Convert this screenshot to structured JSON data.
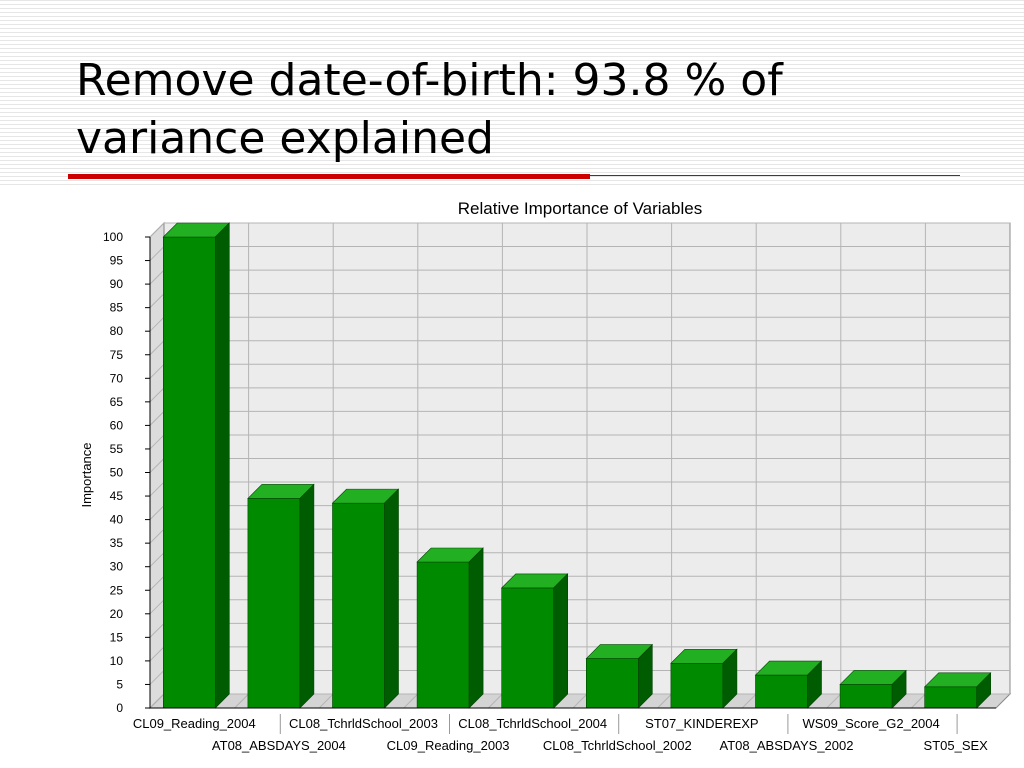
{
  "slide": {
    "title_line1": "Remove date-of-birth: 93.8 % of",
    "title_line2": "variance explained"
  },
  "chart_data": {
    "type": "bar",
    "title": "Relative Importance of Variables",
    "xlabel": "",
    "ylabel": "Importance",
    "ylim": [
      0,
      100
    ],
    "yticks": [
      0,
      5,
      10,
      15,
      20,
      25,
      30,
      35,
      40,
      45,
      50,
      55,
      60,
      65,
      70,
      75,
      80,
      85,
      90,
      95,
      100
    ],
    "grid": true,
    "categories": [
      "CL09_Reading_2004",
      "AT08_ABSDAYS_2004",
      "CL08_TchrldSchool_2003",
      "CL09_Reading_2003",
      "CL08_TchrldSchool_2004",
      "CL08_TchrldSchool_2002",
      "ST07_KINDEREXP",
      "AT08_ABSDAYS_2002",
      "WS09_Score_G2_2004",
      "ST05_SEX"
    ],
    "values": [
      100,
      44.5,
      43.5,
      31,
      25.5,
      10.5,
      9.5,
      7,
      5,
      4.5
    ],
    "colors": {
      "bar_front": "#008a00",
      "bar_top": "#22b022",
      "bar_side": "#005c00",
      "plot_back": "#ececec",
      "grid": "#b4b4b4"
    }
  }
}
